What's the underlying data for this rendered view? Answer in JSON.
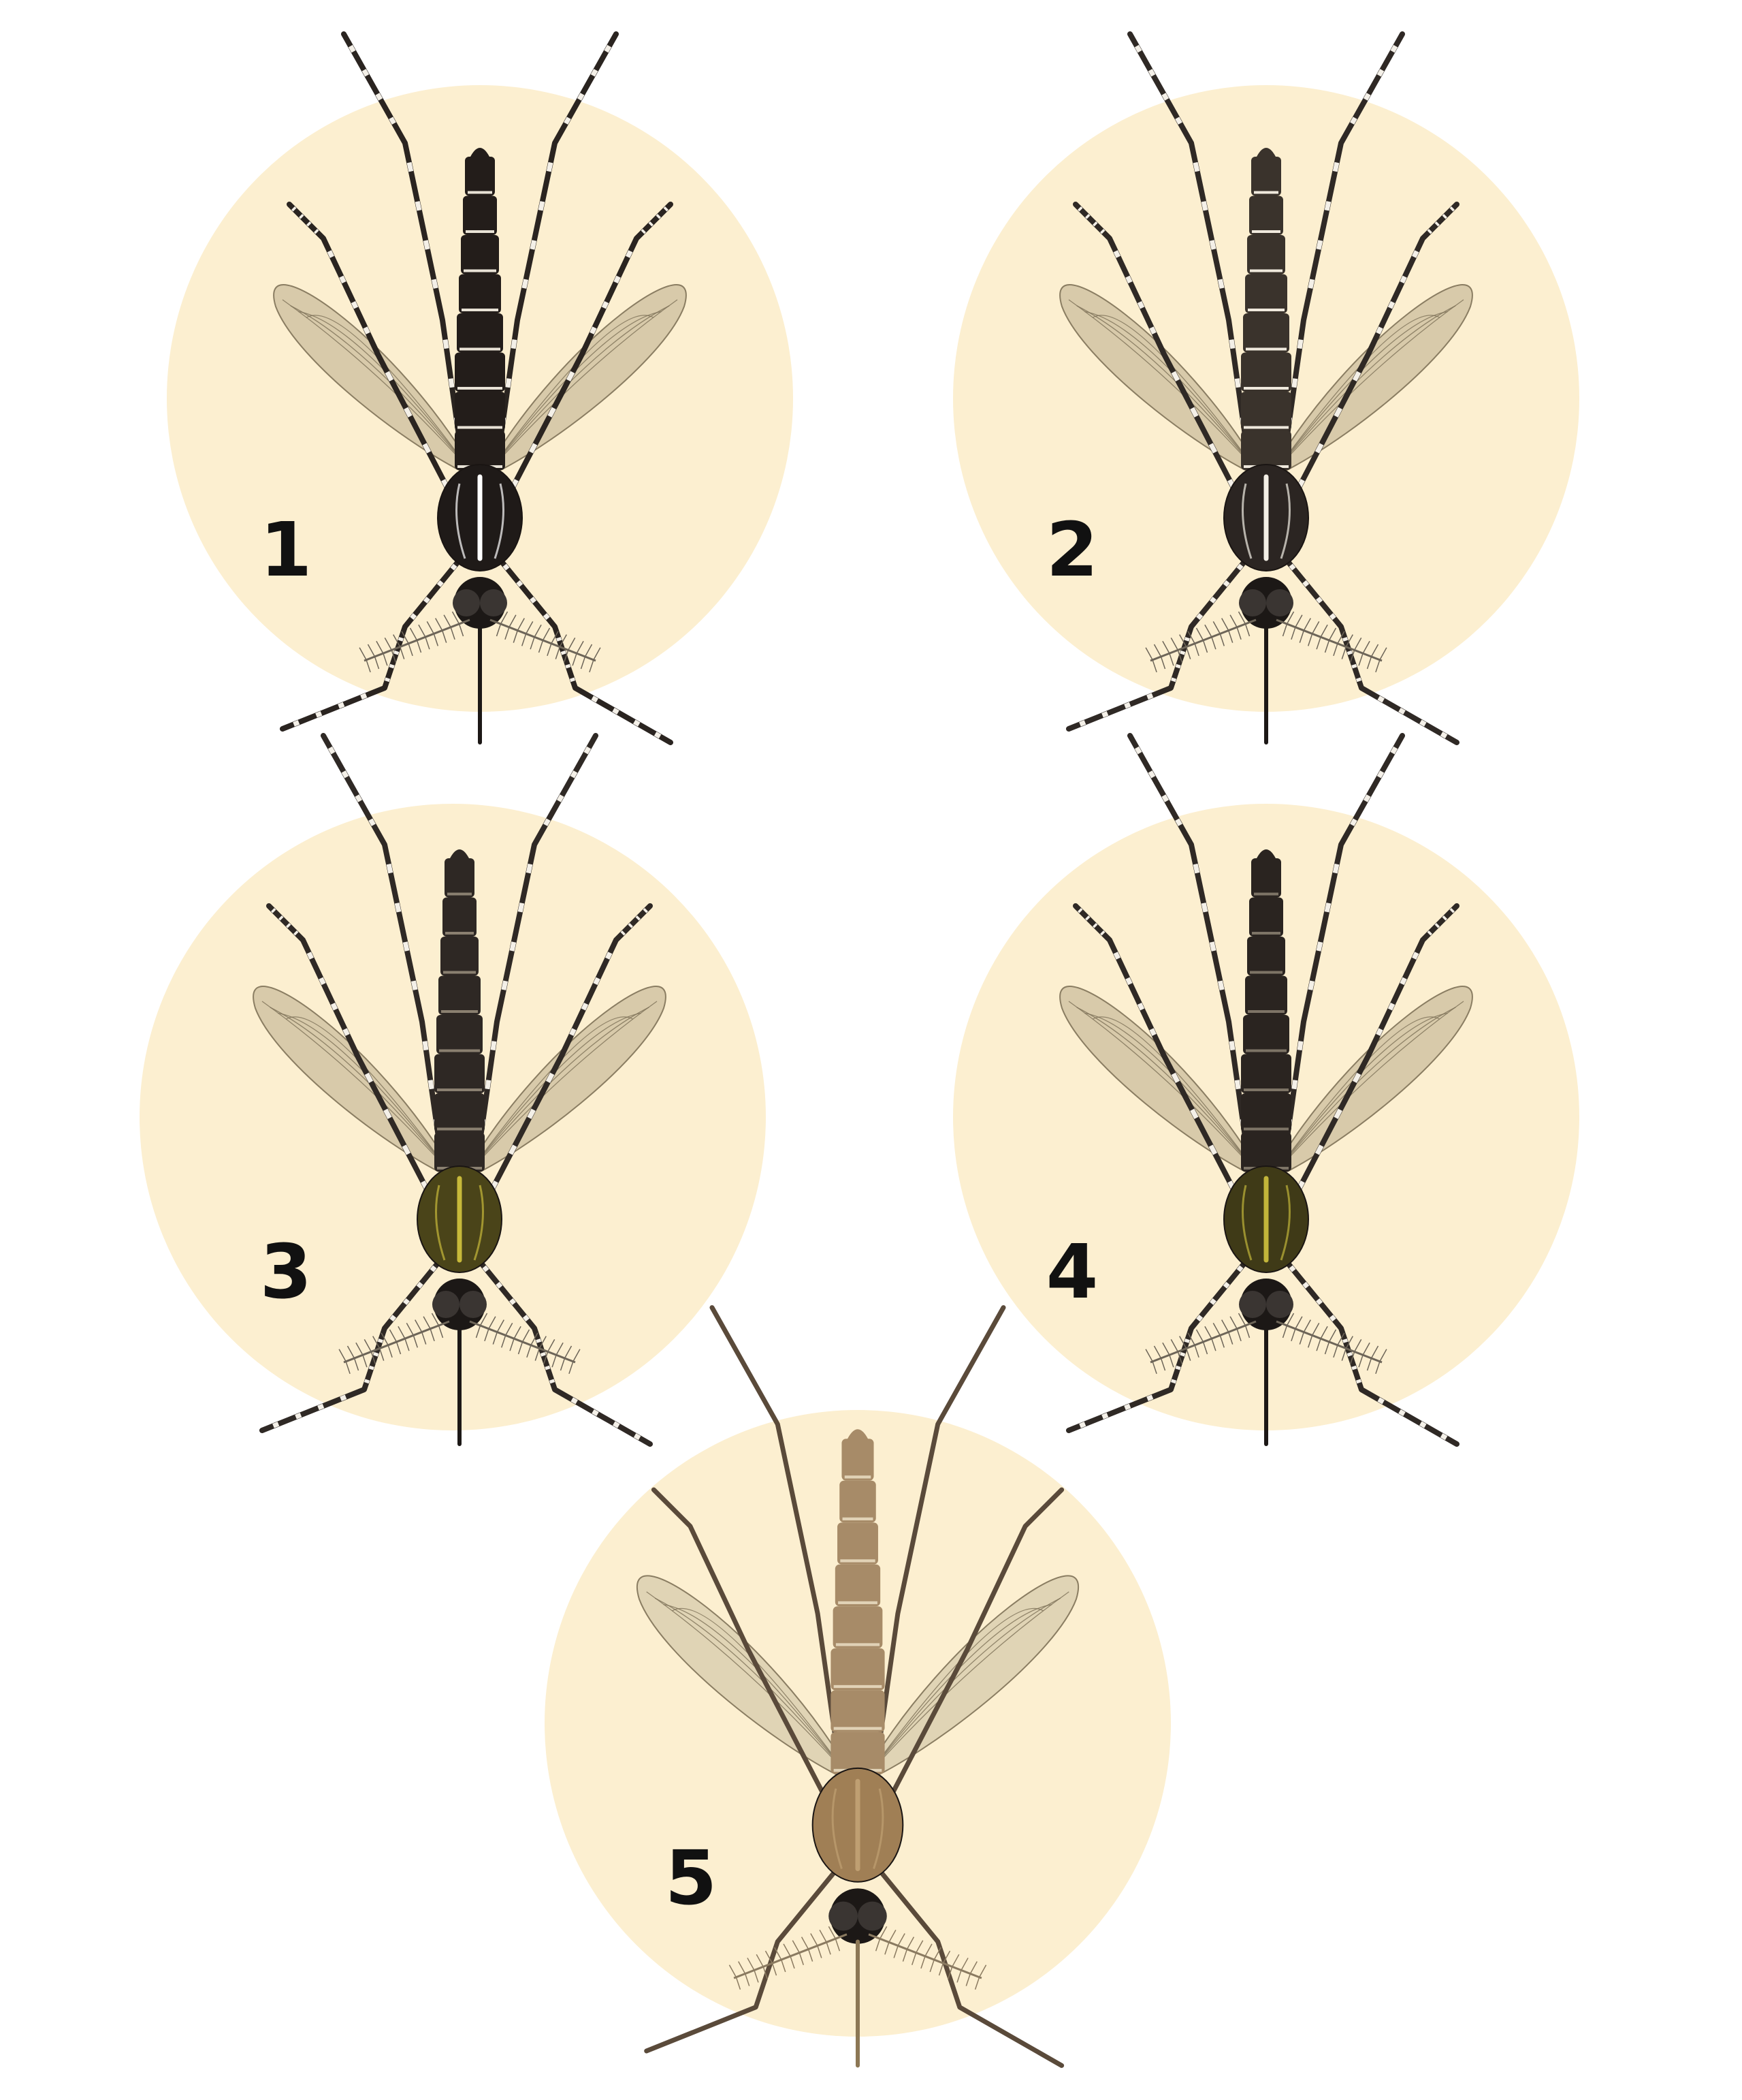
{
  "plates": [
    {
      "label": "1",
      "species": "black-white-striped",
      "thorax": "#1f1a18",
      "thorax_stripe": "#ffffff",
      "abdomen": "#231d1a",
      "band": "#e8e2d6",
      "legs": "#2a2420",
      "leg_bands": true,
      "wing": "#b9ac8a"
    },
    {
      "label": "2",
      "species": "lyre-marked",
      "thorax": "#2b2522",
      "thorax_stripe": "#f3efe6",
      "abdomen": "#3a332c",
      "band": "#efe9dd",
      "legs": "#2f2925",
      "leg_bands": true,
      "wing": "#b9ac8a"
    },
    {
      "label": "3",
      "species": "olive-striped",
      "thorax": "#4a4419",
      "thorax_stripe": "#c7b93a",
      "abdomen": "#2e2824",
      "band": "#8a8070",
      "legs": "#2f2925",
      "leg_bands": true,
      "wing": "#b9ac8a"
    },
    {
      "label": "4",
      "species": "olive-striped-dark",
      "thorax": "#3f3a17",
      "thorax_stripe": "#c2b53a",
      "abdomen": "#2a2420",
      "band": "#7d7466",
      "legs": "#2f2925",
      "leg_bands": true,
      "wing": "#b9ac8a"
    },
    {
      "label": "5",
      "species": "brown",
      "thorax": "#a07f55",
      "thorax_stripe": "#bf9f72",
      "abdomen": "#a78b68",
      "band": "#e1d2b6",
      "legs": "#5a4a3a",
      "leg_bands": false,
      "wing": "#c9bd9f"
    }
  ],
  "colors": {
    "background": "#ffffff",
    "plate_circle": "#fcefd0"
  }
}
